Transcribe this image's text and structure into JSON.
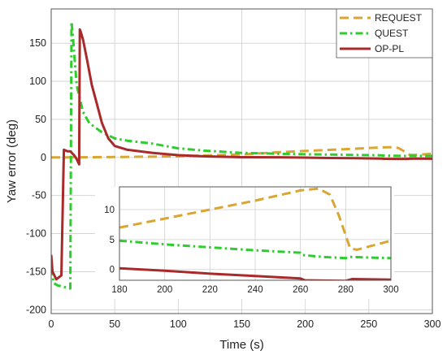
{
  "chart_data": [
    {
      "type": "line",
      "xlabel": "Time  (s)",
      "ylabel": "Yaw error (deg)",
      "xlim": [
        0,
        300
      ],
      "ylim": [
        -205,
        195
      ],
      "xticks": [
        0,
        50,
        100,
        150,
        200,
        250,
        300
      ],
      "yticks": [
        -200,
        -150,
        -100,
        -50,
        0,
        50,
        100,
        150
      ],
      "grid": true,
      "legend_position": "top-right",
      "series": [
        {
          "name": "REQUEST",
          "color": "#d9a634",
          "dash": "dashed",
          "x": [
            0,
            50,
            100,
            150,
            180,
            200,
            220,
            240,
            260,
            268,
            273,
            277,
            282,
            285,
            290,
            300
          ],
          "y": [
            0,
            0.5,
            1.5,
            4,
            7,
            8.5,
            10,
            11.5,
            13.2,
            13.5,
            12.5,
            9,
            3.5,
            3.3,
            3.8,
            4.8
          ]
        },
        {
          "name": "QUEST",
          "color": "#2ecc2e",
          "dash": "dash-dot",
          "x": [
            0,
            2,
            5,
            10,
            15,
            16,
            17,
            20,
            25,
            30,
            40,
            50,
            60,
            80,
            100,
            120,
            150,
            180,
            200,
            220,
            240,
            260,
            261,
            270,
            280,
            282,
            290,
            300
          ],
          "y": [
            -145,
            -165,
            -168,
            -170,
            -172,
            178,
            160,
            95,
            60,
            45,
            33,
            25,
            22,
            18,
            12,
            9,
            6,
            4.8,
            4.2,
            3.7,
            3.2,
            2.8,
            2.4,
            2.1,
            1.9,
            2.1,
            2.0,
            1.9
          ]
        },
        {
          "name": "OP-PL",
          "color": "#a82a2a",
          "dash": "solid",
          "x": [
            0,
            1,
            4,
            8,
            10,
            13,
            15,
            18,
            20,
            22,
            22.5,
            23,
            25,
            28,
            32,
            36,
            40,
            45,
            50,
            60,
            80,
            100,
            120,
            150,
            180,
            200,
            220,
            240,
            260,
            262,
            280,
            283,
            300
          ],
          "y": [
            -128,
            -150,
            -160,
            -155,
            10,
            8,
            8,
            3,
            -2,
            -9,
            168,
            166,
            155,
            130,
            95,
            70,
            45,
            25,
            15,
            10,
            6,
            3,
            1.5,
            0.3,
            0.2,
            -0.2,
            -0.7,
            -1.1,
            -1.5,
            -1.8,
            -1.9,
            -1.6,
            -1.7
          ]
        }
      ]
    },
    {
      "type": "line",
      "xlim": [
        180,
        300
      ],
      "ylim": [
        -1.8,
        13.8
      ],
      "xticks": [
        180,
        200,
        220,
        240,
        260,
        280,
        300
      ],
      "yticks": [
        0,
        5,
        10
      ],
      "grid": true,
      "note_series_same_as_main": true
    }
  ],
  "legend": {
    "entries": [
      "REQUEST",
      "QUEST",
      "OP-PL"
    ]
  }
}
